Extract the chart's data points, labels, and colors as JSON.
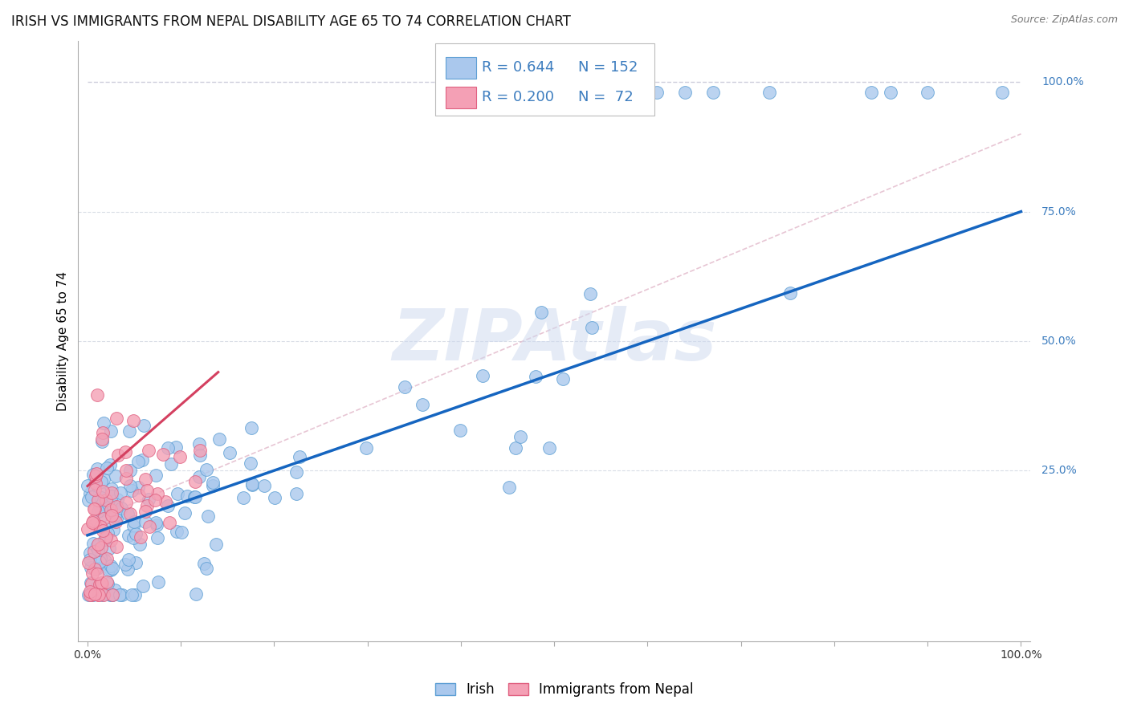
{
  "title": "IRISH VS IMMIGRANTS FROM NEPAL DISABILITY AGE 65 TO 74 CORRELATION CHART",
  "source": "Source: ZipAtlas.com",
  "xlabel": "",
  "ylabel": "Disability Age 65 to 74",
  "xlim": [
    -0.01,
    1.01
  ],
  "ylim": [
    -0.08,
    1.08
  ],
  "xtick_positions": [
    0.0,
    0.1,
    0.2,
    0.3,
    0.4,
    0.5,
    0.6,
    0.7,
    0.8,
    0.9,
    1.0
  ],
  "xtick_labels": [
    "0.0%",
    "",
    "",
    "",
    "",
    "",
    "",
    "",
    "",
    "",
    "100.0%"
  ],
  "ytick_positions": [
    0.0,
    0.25,
    0.5,
    0.75,
    1.0
  ],
  "ytick_labels": [
    "",
    "25.0%",
    "50.0%",
    "75.0%",
    "100.0%"
  ],
  "irish_color": "#aac8ed",
  "irish_edge_color": "#5d9fd4",
  "nepal_color": "#f4a0b5",
  "nepal_edge_color": "#e06080",
  "irish_line_color": "#1565c0",
  "nepal_line_color": "#d44060",
  "ref_line_color": "#c8c8d8",
  "irish_r": 0.644,
  "irish_n": 152,
  "nepal_r": 0.2,
  "nepal_n": 72,
  "irish_trend": [
    0.0,
    0.125,
    1.0,
    0.75
  ],
  "nepal_trend": [
    0.0,
    0.15,
    1.0,
    0.9
  ],
  "ref_line": [
    0.0,
    1.0,
    1.0,
    1.0
  ],
  "background_color": "#ffffff",
  "watermark_text": "ZIPAtlas",
  "watermark_color": "#ccd8ee",
  "title_fontsize": 12,
  "tick_fontsize": 10,
  "legend_fontsize": 13,
  "ytick_color": "#3d7dbf"
}
